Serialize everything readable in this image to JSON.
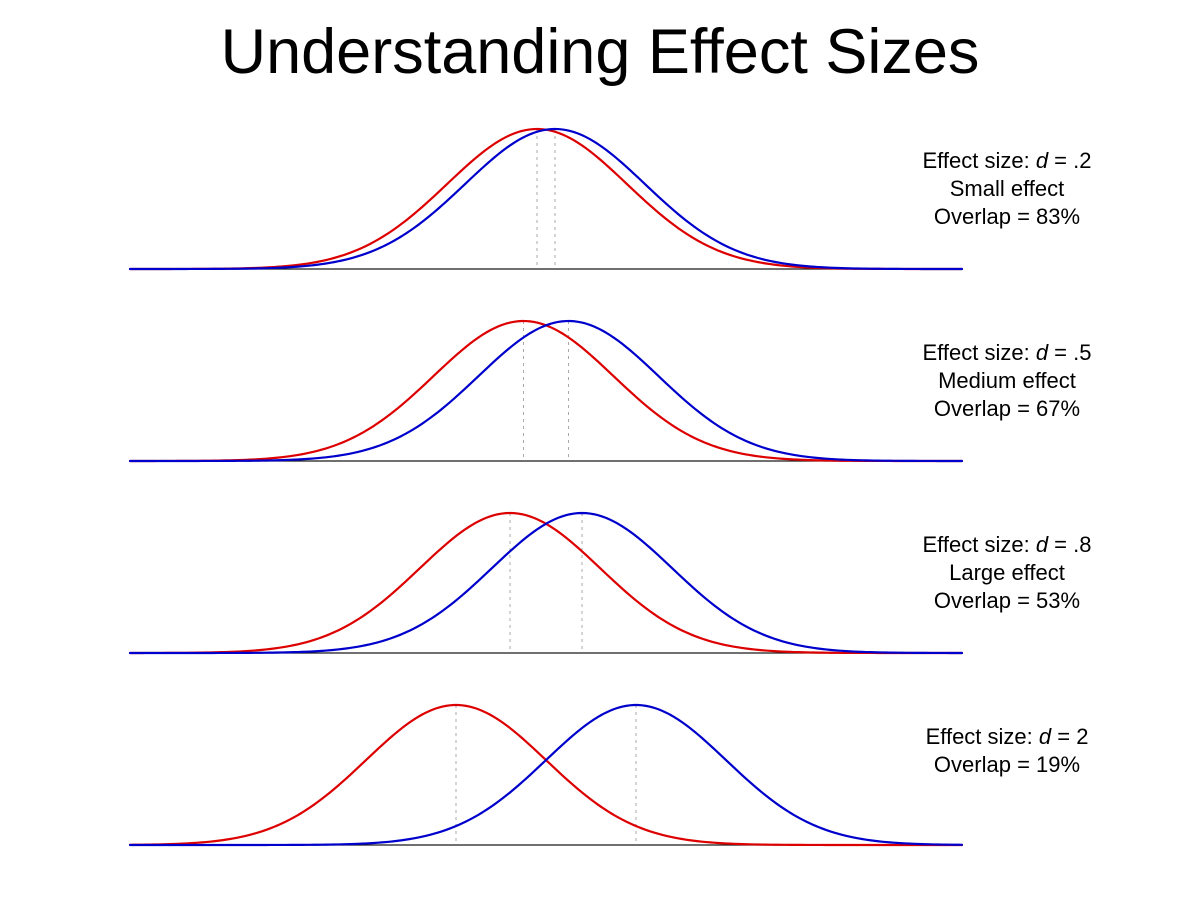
{
  "title": "Understanding Effect Sizes",
  "chart_data": {
    "type": "line",
    "title": "Understanding Effect Sizes",
    "description": "Four pairs of overlapping normal distributions (equal SD) illustrating Cohen's d effect sizes; means separated by d standard deviations, with dashed vertical lines marking each mean.",
    "x_unit": "standard deviations",
    "x_axis": {
      "visible": true,
      "tick_labels": []
    },
    "y_axis": {
      "visible": false,
      "tick_labels": []
    },
    "colors": {
      "red_curve": "#dd0000",
      "blue_curve": "#0000cc",
      "mean_line": "#a9a9a9",
      "axis": "#1a1a1a"
    },
    "panels": [
      {
        "d": 0.2,
        "sd": 1,
        "red_mean_sd": -0.1,
        "blue_mean_sd": 0.1,
        "overlap_pct": 83,
        "effect_prefix": "Effect size: ",
        "d_symbol": "d",
        "effect_value": " = .2",
        "effect_name": "Small effect",
        "overlap_label": "Overlap = 83%"
      },
      {
        "d": 0.5,
        "sd": 1,
        "red_mean_sd": -0.25,
        "blue_mean_sd": 0.25,
        "overlap_pct": 67,
        "effect_prefix": "Effect size: ",
        "d_symbol": "d",
        "effect_value": " = .5",
        "effect_name": "Medium effect",
        "overlap_label": "Overlap = 67%"
      },
      {
        "d": 0.8,
        "sd": 1,
        "red_mean_sd": -0.4,
        "blue_mean_sd": 0.4,
        "overlap_pct": 53,
        "effect_prefix": "Effect size: ",
        "d_symbol": "d",
        "effect_value": " = .8",
        "effect_name": "Large effect",
        "overlap_label": "Overlap = 53%"
      },
      {
        "d": 2,
        "sd": 1,
        "red_mean_sd": -1,
        "blue_mean_sd": 1,
        "overlap_pct": 19,
        "effect_prefix": "Effect size: ",
        "d_symbol": "d",
        "effect_value": " = 2",
        "effect_name": "",
        "overlap_label": "Overlap = 19%"
      }
    ]
  }
}
